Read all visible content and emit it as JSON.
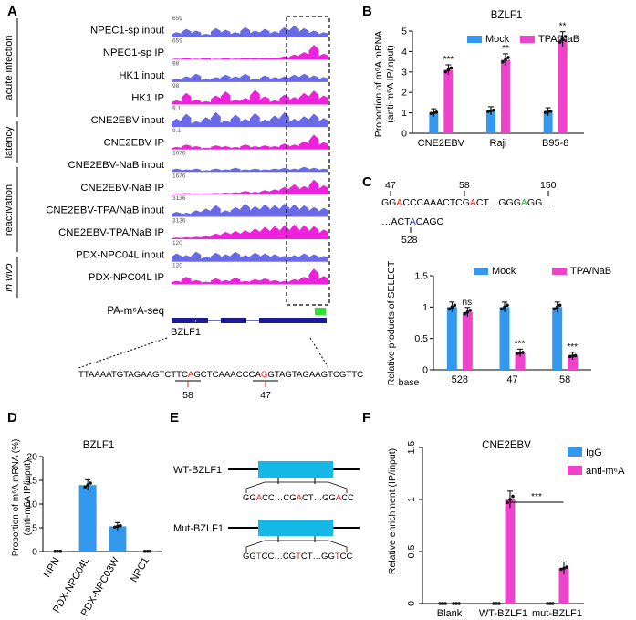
{
  "panels": {
    "A": "A",
    "B": "B",
    "C": "C",
    "D": "D",
    "E": "E",
    "F": "F"
  },
  "panelA": {
    "tracks": [
      {
        "label": "NPEC1-sp input",
        "scale": "659",
        "color": "#6a6ae8"
      },
      {
        "label": "NPEC1-sp IP",
        "scale": "659",
        "color": "#ee22dd"
      },
      {
        "label": "HK1 input",
        "scale": "98",
        "color": "#6a6ae8"
      },
      {
        "label": "HK1 IP",
        "scale": "98",
        "color": "#ee22dd"
      },
      {
        "label": "CNE2EBV input",
        "scale": "9.1",
        "color": "#6a6ae8"
      },
      {
        "label": "CNE2EBV IP",
        "scale": "9.1",
        "color": "#ee22dd"
      },
      {
        "label": "CNE2EBV-NaB input",
        "scale": "1676",
        "color": "#6a6ae8"
      },
      {
        "label": "CNE2EBV-NaB IP",
        "scale": "1676",
        "color": "#ee22dd"
      },
      {
        "label": "CNE2EBV-TPA/NaB input",
        "scale": "3136",
        "color": "#6a6ae8"
      },
      {
        "label": "CNE2EBV-TPA/NaB IP",
        "scale": "3136",
        "color": "#ee22dd"
      },
      {
        "label": "PDX-NPC04L input",
        "scale": "120",
        "color": "#6a6ae8"
      },
      {
        "label": "PDX-NPC04L IP",
        "scale": "120",
        "color": "#ee22dd"
      }
    ],
    "groups": [
      "acute infection",
      "latency",
      "reactivation",
      "in vivo"
    ],
    "pa_label": "PA-m⁶A-seq",
    "gene": "BZLF1",
    "seq_pre": "TTAAAATGTAGAAGTCTTC",
    "seq_a1": "A",
    "seq_mid": "GCTCAAACCCA",
    "seq_a2": "G",
    "seq_post": "GTAGTAGAAGTCGTTC",
    "pos1": "58",
    "pos2": "47"
  },
  "panelB": {
    "title": "BZLF1",
    "ylabel_1": "Proportion of m⁶A mRNA",
    "ylabel_2": "(anti-m⁶A IP/input)",
    "yticks": [
      "0",
      "1",
      "2",
      "3",
      "4",
      "5"
    ],
    "legend": [
      "Mock",
      "TPA/NaB"
    ],
    "sig": [
      "***",
      "**",
      "**"
    ],
    "chart_data": {
      "type": "bar",
      "categories": [
        "CNE2EBV",
        "Raji",
        "B95-8"
      ],
      "ylim": [
        0,
        5
      ],
      "series": [
        {
          "name": "Mock",
          "values": [
            1.0,
            1.1,
            1.05
          ],
          "color": "#3399ee"
        },
        {
          "name": "TPA/NaB",
          "values": [
            3.1,
            3.6,
            4.6
          ],
          "color": "#ee44cc"
        }
      ]
    }
  },
  "panelC": {
    "seq_line1": [
      {
        "t": "GG",
        "c": "#000"
      },
      {
        "t": "A",
        "c": "#e82020"
      },
      {
        "t": "CCCAAACTCG",
        "c": "#000"
      },
      {
        "t": "A",
        "c": "#e82020"
      },
      {
        "t": "CT…GGG",
        "c": "#000"
      },
      {
        "t": "A",
        "c": "#22bb44"
      },
      {
        "t": "GG…",
        "c": "#000"
      }
    ],
    "seq_line2": [
      {
        "t": "…ACT",
        "c": "#000"
      },
      {
        "t": "A",
        "c": "#2233ee"
      },
      {
        "t": "CAGC",
        "c": "#000"
      }
    ],
    "pos_labels": [
      "47",
      "58",
      "150",
      "528"
    ],
    "ylabel": "Relative products of SELECT",
    "yticks": [
      "0",
      "0.5",
      "1",
      "1.5"
    ],
    "legend": [
      "Mock",
      "TPA/NaB"
    ],
    "base_label": "base",
    "sig": [
      "ns",
      "***",
      "***"
    ],
    "chart_data": {
      "type": "bar",
      "categories": [
        "528",
        "47",
        "58"
      ],
      "ylim": [
        0,
        1.5
      ],
      "series": [
        {
          "name": "Mock",
          "values": [
            1.0,
            1.0,
            1.0
          ],
          "color": "#3399ee"
        },
        {
          "name": "TPA/NaB",
          "values": [
            0.92,
            0.27,
            0.22
          ],
          "color": "#ee44cc"
        }
      ]
    }
  },
  "panelD": {
    "title": "BZLF1",
    "ylabel_1": "Proportion of m⁶A mRNA (%)",
    "ylabel_2": "(anti-m6A IP/input)",
    "yticks": [
      "0",
      "5",
      "10",
      "15",
      "20"
    ],
    "chart_data": {
      "type": "bar",
      "categories": [
        "NPN",
        "PDX-NPC04L",
        "PDX-NPC03W",
        "NPC1"
      ],
      "ylim": [
        0,
        20
      ],
      "series": [
        {
          "values": [
            0.05,
            14.0,
            5.3,
            0.05
          ],
          "color": "#3399ee"
        }
      ]
    }
  },
  "panelE": {
    "wt_label": "WT-BZLF1",
    "mut_label": "Mut-BZLF1",
    "wt_seq": [
      {
        "t": "GG",
        "c": "#000"
      },
      {
        "t": "A",
        "c": "#e82020"
      },
      {
        "t": "CC…CG",
        "c": "#000"
      },
      {
        "t": "A",
        "c": "#e82020"
      },
      {
        "t": "CT…GG",
        "c": "#000"
      },
      {
        "t": "A",
        "c": "#e82020"
      },
      {
        "t": "CC",
        "c": "#000"
      }
    ],
    "mut_seq": [
      {
        "t": "GG",
        "c": "#000"
      },
      {
        "t": "T",
        "c": "#e82020"
      },
      {
        "t": "CC…CG",
        "c": "#000"
      },
      {
        "t": "T",
        "c": "#e82020"
      },
      {
        "t": "CT…GG",
        "c": "#000"
      },
      {
        "t": "T",
        "c": "#e82020"
      },
      {
        "t": "CC",
        "c": "#000"
      }
    ]
  },
  "panelF": {
    "title": "CNE2EBV",
    "ylabel": "Relative enrichment (IP/input)",
    "yticks": [
      "0",
      "0.5",
      "1",
      "1.5"
    ],
    "legend": [
      "IgG",
      "anti-m⁶A"
    ],
    "sig": "***",
    "chart_data": {
      "type": "bar",
      "categories": [
        "Blank",
        "WT-BZLF1",
        "mut-BZLF1"
      ],
      "ylim": [
        0,
        1.5
      ],
      "series": [
        {
          "name": "IgG",
          "values": [
            0.0,
            0.0,
            0.0
          ],
          "color": "#3399ee"
        },
        {
          "name": "anti-m⁶A",
          "values": [
            0.0,
            1.0,
            0.34
          ],
          "color": "#ee44cc"
        }
      ]
    }
  }
}
